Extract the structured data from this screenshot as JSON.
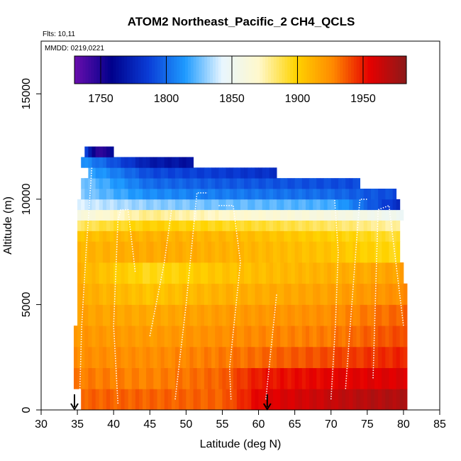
{
  "chart_data": {
    "type": "heatmap",
    "title": "ATOM2 Northeast_Pacific_2 CH4_QCLS",
    "flights_text": "Flts: 10,11",
    "dates_text": "MMDD: 0219,0221",
    "xlabel": "Latitude (deg N)",
    "ylabel": "Altitude (m)",
    "xlim": [
      30,
      85
    ],
    "ylim": [
      0,
      17500
    ],
    "x_ticks": [
      30,
      35,
      40,
      45,
      50,
      55,
      60,
      65,
      70,
      75,
      80,
      85
    ],
    "y_ticks": [
      0,
      5000,
      10000,
      15000
    ],
    "colorbar": {
      "range": [
        1730,
        1983
      ],
      "ticks": [
        1750,
        1800,
        1850,
        1900,
        1950
      ],
      "colors": [
        "#6a0dad",
        "#00008b",
        "#0a3cd6",
        "#1e9bff",
        "#e8f6ff",
        "#fff8cc",
        "#ffd400",
        "#ff8a00",
        "#e60000",
        "#8b1a1a"
      ]
    },
    "altitude_bands_m": [
      0,
      1000,
      2000,
      3000,
      4000,
      5000,
      6000,
      7000,
      8000,
      8500,
      9000,
      9500,
      10000,
      10500,
      11000,
      11500,
      12000
    ],
    "band_extents_lat": [
      [
        35.5,
        80.5
      ],
      [
        34.5,
        80.5
      ],
      [
        34.5,
        80.5
      ],
      [
        34.5,
        80.5
      ],
      [
        35.0,
        80.5
      ],
      [
        35.0,
        80.5
      ],
      [
        35.0,
        80.0
      ],
      [
        35.0,
        79.5
      ],
      [
        35.0,
        79.5
      ],
      [
        35.0,
        79.5
      ],
      [
        35.0,
        80.0
      ],
      [
        35.0,
        79.5
      ],
      [
        35.5,
        79.0
      ],
      [
        35.5,
        74.0
      ],
      [
        36.5,
        62.5
      ],
      [
        35.5,
        51.0
      ],
      [
        36.0,
        40.0
      ]
    ],
    "ch4_by_band_ppb": [
      {
        "alt_m": 500,
        "lats": [
          36,
          45,
          55,
          60,
          65,
          70,
          75,
          80
        ],
        "ch4": [
          1935,
          1935,
          1935,
          1955,
          1960,
          1965,
          1970,
          1972
        ]
      },
      {
        "alt_m": 1500,
        "lats": [
          35,
          45,
          55,
          60,
          70,
          80
        ],
        "ch4": [
          1930,
          1928,
          1935,
          1950,
          1955,
          1958
        ]
      },
      {
        "alt_m": 2500,
        "lats": [
          35,
          45,
          55,
          70,
          80
        ],
        "ch4": [
          1925,
          1925,
          1930,
          1940,
          1948
        ]
      },
      {
        "alt_m": 3500,
        "lats": [
          35,
          45,
          55,
          70,
          80
        ],
        "ch4": [
          1922,
          1920,
          1925,
          1930,
          1940
        ]
      },
      {
        "alt_m": 4500,
        "lats": [
          35,
          45,
          55,
          70,
          80
        ],
        "ch4": [
          1918,
          1915,
          1920,
          1925,
          1935
        ]
      },
      {
        "alt_m": 5500,
        "lats": [
          35,
          45,
          55,
          70,
          80
        ],
        "ch4": [
          1915,
          1905,
          1912,
          1918,
          1925
        ]
      },
      {
        "alt_m": 6500,
        "lats": [
          35,
          45,
          55,
          70,
          80
        ],
        "ch4": [
          1912,
          1895,
          1905,
          1912,
          1918
        ]
      },
      {
        "alt_m": 7500,
        "lats": [
          35,
          45,
          55,
          70,
          80
        ],
        "ch4": [
          1910,
          1915,
          1912,
          1905,
          1895
        ]
      },
      {
        "alt_m": 8250,
        "lats": [
          35,
          45,
          55,
          70,
          80
        ],
        "ch4": [
          1905,
          1912,
          1910,
          1900,
          1890
        ]
      },
      {
        "alt_m": 8750,
        "lats": [
          35,
          45,
          55,
          70,
          80
        ],
        "ch4": [
          1885,
          1900,
          1895,
          1885,
          1875
        ]
      },
      {
        "alt_m": 9250,
        "lats": [
          35,
          45,
          55,
          70,
          80
        ],
        "ch4": [
          1860,
          1880,
          1870,
          1860,
          1850
        ]
      },
      {
        "alt_m": 9750,
        "lats": [
          35,
          45,
          55,
          70,
          79
        ],
        "ch4": [
          1840,
          1830,
          1825,
          1820,
          1780
        ]
      },
      {
        "alt_m": 10250,
        "lats": [
          35,
          45,
          55,
          70,
          79
        ],
        "ch4": [
          1830,
          1810,
          1805,
          1800,
          1790
        ]
      },
      {
        "alt_m": 10750,
        "lats": [
          35,
          45,
          55,
          74
        ],
        "ch4": [
          1830,
          1800,
          1795,
          1790
        ]
      },
      {
        "alt_m": 11250,
        "lats": [
          36,
          45,
          55,
          62
        ],
        "ch4": [
          1820,
          1790,
          1785,
          1780
        ]
      },
      {
        "alt_m": 11750,
        "lats": [
          35,
          45,
          51
        ],
        "ch4": [
          1815,
          1770,
          1765
        ]
      },
      {
        "alt_m": 12000,
        "lats": [
          36,
          38,
          40
        ],
        "ch4": [
          1790,
          1740,
          1765
        ]
      }
    ],
    "arrows_lat": [
      34.6,
      61.2
    ]
  }
}
